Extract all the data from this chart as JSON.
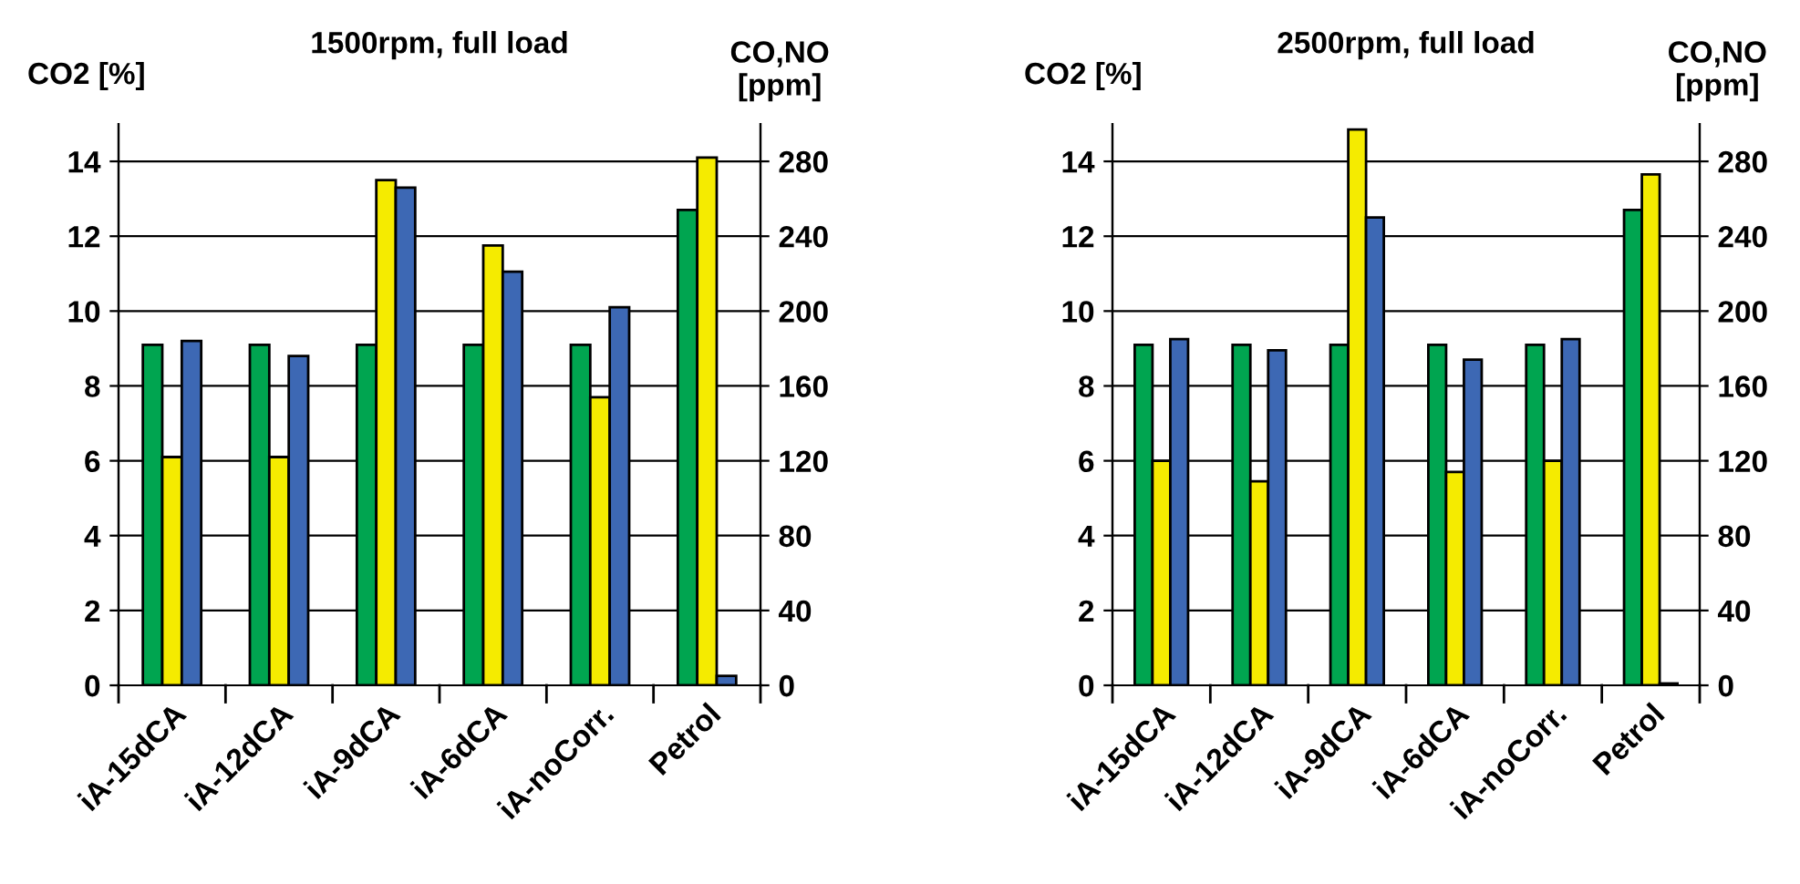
{
  "chart_data": [
    {
      "type": "bar",
      "title": "1500rpm, full load",
      "ylabel": "CO2 [%]",
      "y2label": "CO,NO\n[ppm]",
      "categories": [
        "iA-15dCA",
        "iA-12dCA",
        "iA-9dCA",
        "iA-6dCA",
        "iA-noCorr.",
        "Petrol"
      ],
      "series": [
        {
          "color": "#00a550",
          "values": [
            9.1,
            9.1,
            9.1,
            9.1,
            9.1,
            12.7
          ]
        },
        {
          "color": "#f5eb00",
          "axis": "y2",
          "values": [
            122,
            122,
            270,
            235,
            154,
            282
          ]
        },
        {
          "color": "#3d68b4",
          "axis": "y2",
          "values": [
            184,
            176,
            266,
            221,
            202,
            5
          ]
        }
      ],
      "ylim": [
        0,
        15
      ],
      "yticks": [
        0,
        2,
        4,
        6,
        8,
        10,
        12,
        14
      ],
      "y2lim": [
        0,
        300
      ],
      "y2ticks": [
        0,
        40,
        80,
        120,
        160,
        200,
        240,
        280
      ],
      "grid": "y",
      "legend": false
    },
    {
      "type": "bar",
      "title": "2500rpm, full load",
      "ylabel": "CO2 [%]",
      "y2label": "CO,NO\n[ppm]",
      "categories": [
        "iA-15dCA",
        "iA-12dCA",
        "iA-9dCA",
        "iA-6dCA",
        "iA-noCorr.",
        "Petrol"
      ],
      "series": [
        {
          "color": "#00a550",
          "values": [
            9.1,
            9.1,
            9.1,
            9.1,
            9.1,
            12.7
          ]
        },
        {
          "color": "#f5eb00",
          "axis": "y2",
          "values": [
            120,
            109,
            297,
            114,
            120,
            273
          ]
        },
        {
          "color": "#3d68b4",
          "axis": "y2",
          "values": [
            185,
            179,
            250,
            174,
            185,
            1
          ]
        }
      ],
      "ylim": [
        0,
        15
      ],
      "yticks": [
        0,
        2,
        4,
        6,
        8,
        10,
        12,
        14
      ],
      "y2lim": [
        0,
        300
      ],
      "y2ticks": [
        0,
        40,
        80,
        120,
        160,
        200,
        240,
        280
      ],
      "grid": "y",
      "legend": false
    }
  ]
}
